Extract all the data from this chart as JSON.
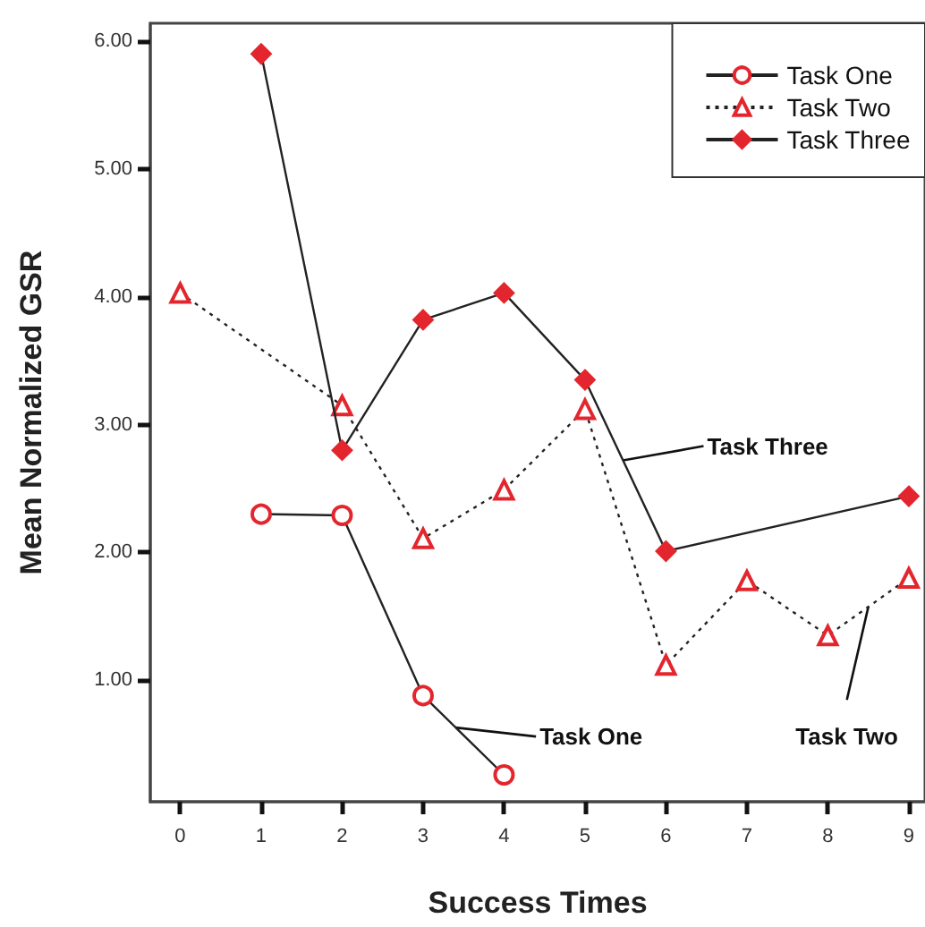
{
  "chart_data": {
    "type": "line",
    "xlabel": "Success Times",
    "ylabel": "Mean Normalized GSR",
    "x": [
      0,
      1,
      2,
      3,
      4,
      5,
      6,
      7,
      8,
      9
    ],
    "series": [
      {
        "name": "Task One",
        "color": "#e3262e",
        "marker": "circle",
        "line_style": "solid",
        "values": [
          null,
          2.3,
          2.29,
          0.88,
          0.26,
          null,
          null,
          null,
          null,
          null
        ]
      },
      {
        "name": "Task Two",
        "color": "#e3262e",
        "marker": "triangle",
        "line_style": "dotted",
        "values": [
          4.03,
          null,
          3.15,
          2.11,
          2.49,
          3.12,
          1.12,
          1.78,
          1.35,
          1.8
        ]
      },
      {
        "name": "Task Three",
        "color": "#e3262e",
        "marker": "diamond",
        "line_style": "solid",
        "values": [
          null,
          5.9,
          2.8,
          3.82,
          4.03,
          3.35,
          2.01,
          null,
          null,
          2.44
        ]
      }
    ],
    "xlim": [
      -0.37,
      9.2
    ],
    "xticks": [
      0,
      1,
      2,
      3,
      4,
      5,
      6,
      7,
      8,
      9
    ],
    "ylim": [
      0.05,
      6.14
    ],
    "yticks": [
      {
        "value": 1,
        "label": "1.00"
      },
      {
        "value": 2,
        "label": "2.00"
      },
      {
        "value": 3,
        "label": "3.00"
      },
      {
        "value": 4,
        "label": "4.00"
      },
      {
        "value": 5,
        "label": "5.00"
      },
      {
        "value": 6,
        "label": "6.00"
      }
    ],
    "annotations": [
      {
        "text": "Task One",
        "x": 3.4,
        "y": 0.63
      },
      {
        "text": "Task Three",
        "x": 5.47,
        "y": 2.72
      },
      {
        "text": "Task Two",
        "x": 8.5,
        "y": 1.575
      }
    ],
    "grid": false,
    "legend": "top right"
  }
}
